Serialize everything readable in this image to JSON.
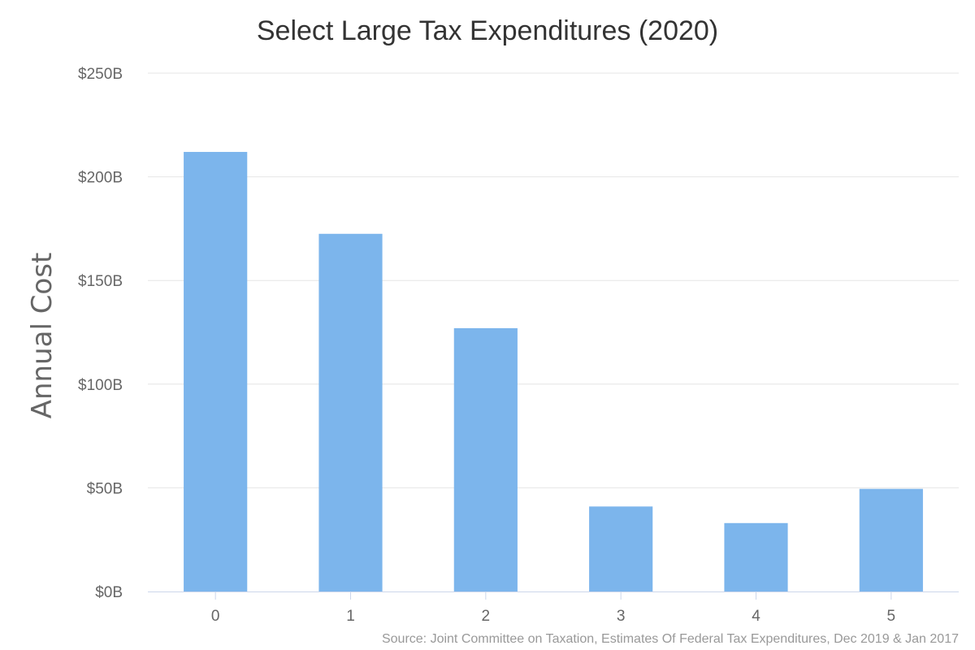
{
  "chart_data": {
    "type": "bar",
    "title": "Select Large Tax Expenditures (2020)",
    "ylabel": "Annual Cost",
    "xlabel": "",
    "categories": [
      "0",
      "1",
      "2",
      "3",
      "4",
      "5"
    ],
    "values": [
      212,
      172.5,
      127,
      41,
      33,
      49.5
    ],
    "ylim": [
      0,
      250
    ],
    "y_ticks": [
      0,
      50,
      100,
      150,
      200,
      250
    ],
    "y_tick_labels": [
      "$0B",
      "$50B",
      "$100B",
      "$150B",
      "$200B",
      "$250B"
    ],
    "bar_color": "#7cb5ec",
    "grid": true,
    "legend": "none"
  },
  "source": "Source: Joint Committee on Taxation, Estimates Of Federal Tax Expenditures, Dec 2019 & Jan 2017"
}
